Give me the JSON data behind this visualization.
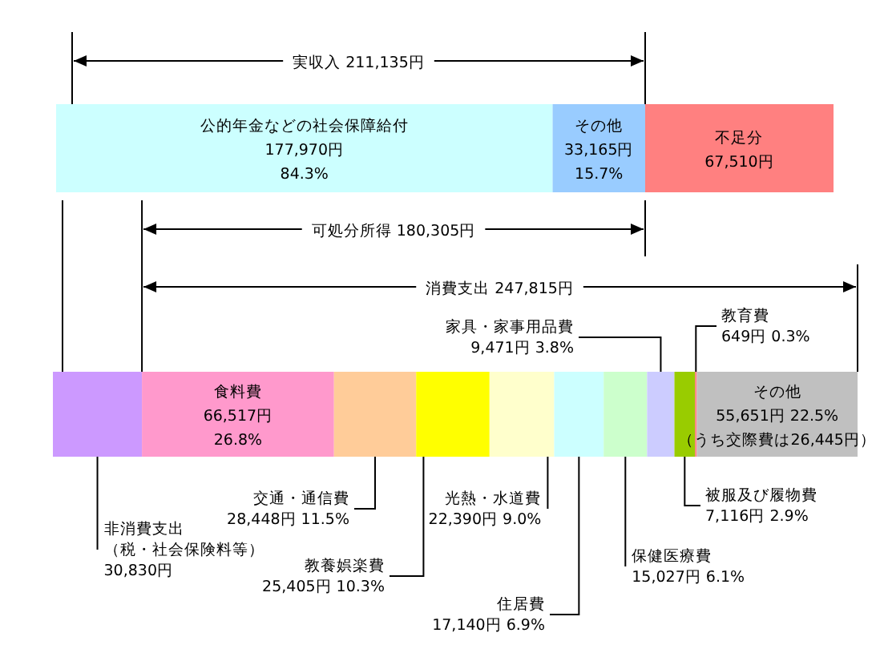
{
  "chart_data": [
    {
      "type": "bar",
      "orientation": "horizontal",
      "stacked": true,
      "categories": [
        null
      ],
      "legend": false,
      "annotations": [
        "実収入 211,135円"
      ],
      "series": [
        {
          "name": "公的年金などの社会保障給付",
          "color": "#ccffff",
          "values": [
            177970
          ],
          "value_labels": [
            "177,970円 84.3%"
          ]
        },
        {
          "name": "その他",
          "color": "#99ccff",
          "values": [
            33165
          ],
          "value_labels": [
            "33,165円 15.7%"
          ]
        },
        {
          "name": "不足分",
          "color": "#ff8080",
          "values": [
            67510
          ],
          "value_labels": [
            "67,510円"
          ]
        }
      ]
    },
    {
      "type": "bar",
      "orientation": "horizontal",
      "stacked": true,
      "categories": [
        null
      ],
      "legend": false,
      "annotations": [
        "可処分所得 180,305円",
        "消費支出 247,815円",
        "（うち交際費は26,445円）"
      ],
      "series": [
        {
          "name": "非消費支出（税・社会保険料等）",
          "color": "#cc99ff",
          "values": [
            30830
          ],
          "value_labels": [
            "30,830円"
          ]
        },
        {
          "name": "食料費",
          "color": "#ff99cc",
          "values": [
            66517
          ],
          "value_labels": [
            "66,517円 26.8%"
          ]
        },
        {
          "name": "交通・通信費",
          "color": "#ffcc99",
          "values": [
            28448
          ],
          "value_labels": [
            "28,448円 11.5%"
          ]
        },
        {
          "name": "教養娯楽費",
          "color": "#ffff00",
          "values": [
            25405
          ],
          "value_labels": [
            "25,405円 10.3%"
          ]
        },
        {
          "name": "光熱・水道費",
          "color": "#ffffcc",
          "values": [
            22390
          ],
          "value_labels": [
            "22,390円 9.0%"
          ]
        },
        {
          "name": "住居費",
          "color": "#ccffff",
          "values": [
            17140
          ],
          "value_labels": [
            "17,140円 6.9%"
          ]
        },
        {
          "name": "保健医療費",
          "color": "#ccffcc",
          "values": [
            15027
          ],
          "value_labels": [
            "15,027円 6.1%"
          ]
        },
        {
          "name": "家具・家事用品費",
          "color": "#ccccff",
          "values": [
            9471
          ],
          "value_labels": [
            "9,471円 3.8%"
          ]
        },
        {
          "name": "被服及び履物費",
          "color": "#99cc00",
          "values": [
            7116
          ],
          "value_labels": [
            "7,116円 2.9%"
          ]
        },
        {
          "name": "教育費",
          "color": "#ff8080",
          "values": [
            649
          ],
          "value_labels": [
            "649円 0.3%"
          ]
        },
        {
          "name": "その他",
          "color": "#c0c0c0",
          "values": [
            55651
          ],
          "value_labels": [
            "55,651円 22.5%"
          ]
        }
      ]
    }
  ]
}
